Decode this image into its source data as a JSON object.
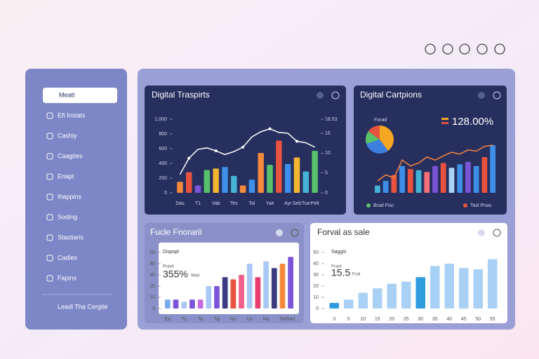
{
  "sidebar": {
    "items": [
      "Meatt",
      "Efi Instats",
      "Cashiy",
      "Caagties",
      "Enapt",
      "Ihappins",
      "Soding",
      "Stastiaris",
      "Cadies",
      "Fapins"
    ],
    "footer": "Leadl Tha Cergite"
  },
  "chart_data": [
    {
      "type": "bar",
      "title": "Digital Traspirts",
      "categories": [
        "Sau",
        null,
        "T1",
        null,
        "Vab",
        null,
        "Tes",
        null,
        "Tal",
        null,
        "Yae",
        null,
        "Ayr",
        "Seb",
        "Tue",
        "Pelt"
      ],
      "values": [
        150,
        280,
        100,
        310,
        330,
        350,
        230,
        100,
        180,
        540,
        380,
        710,
        390,
        480,
        290,
        570
      ],
      "colors": [
        "#f58a3c",
        "#e8533f",
        "#7a55d8",
        "#58c26a",
        "#f2b630",
        "#3d8fe8",
        "#45b3d6",
        "#f58a3c",
        "#3d8fe8",
        "#f58a3c",
        "#58c26a",
        "#e8533f",
        "#3d8fe8",
        "#f2b630",
        "#45b3d6",
        "#58c26a"
      ],
      "line_values": [
        250,
        470,
        590,
        610,
        570,
        520,
        560,
        620,
        760,
        830,
        870,
        820,
        810,
        700,
        680,
        620
      ],
      "line_color": "#ffffff",
      "ylim": [
        0,
        1000
      ],
      "yticks": [
        0,
        200,
        400,
        600,
        800,
        {
          "value": 1000,
          "label": "1,000"
        }
      ],
      "y2lim": [
        0,
        18.53
      ],
      "y2ticks": [
        0,
        5,
        10,
        15,
        18.53
      ]
    },
    {
      "type": "bar",
      "title": "Digital Cartpions",
      "kpi": "128.00%",
      "pie_label": "Forad",
      "pie": {
        "values": [
          40,
          30,
          15,
          15
        ],
        "colors": [
          "#f5a623",
          "#3d7fe0",
          "#58c26a",
          "#e8533f"
        ]
      },
      "values": [
        12,
        20,
        30,
        45,
        40,
        38,
        35,
        45,
        50,
        42,
        48,
        52,
        45,
        60,
        80
      ],
      "colors": [
        "#45b3d6",
        "#3d8fe8",
        "#e8533f",
        "#3d8fe8",
        "#e8533f",
        "#45b3d6",
        "#f5707a",
        "#7a55d8",
        "#e8533f",
        "#a9d6f5",
        "#3d8fe8",
        "#7a55d8",
        "#3d8fe8",
        "#e8533f",
        "#3d8fe8"
      ],
      "line_values": [
        20,
        30,
        25,
        55,
        45,
        50,
        60,
        55,
        62,
        68,
        65,
        72,
        70,
        78,
        80
      ],
      "line_color": "#f5843c",
      "ylim": [
        0,
        100
      ],
      "legend": [
        {
          "label": "Brad Fisc",
          "color": "#58c26a"
        },
        {
          "label": "Tasl Pnas",
          "color": "#e8533f"
        }
      ]
    },
    {
      "type": "bar",
      "title": "Fucle Fnoraril",
      "note_title": "Dispspl",
      "note_sub": "Prasit",
      "kpi": "355%",
      "kpi_unit": "Wad",
      "categories": [
        "Ea",
        null,
        "Tu",
        null,
        "Ta",
        null,
        "Tip",
        null,
        "Nu",
        null,
        "Uu",
        null,
        "Na",
        null,
        "Tar",
        "Bart"
      ],
      "values": [
        8,
        8,
        6,
        8,
        8,
        20,
        20,
        28,
        26,
        30,
        40,
        28,
        42,
        36,
        40,
        46
      ],
      "colors": [
        "#7aa8f0",
        "#7a55d8",
        "#a9c8f5",
        "#7a55d8",
        "#c86adf",
        "#a9c8f5",
        "#7a55d8",
        "#3a3a80",
        "#e8533f",
        "#f0608a",
        "#a9c8f5",
        "#e83f70",
        "#a9c8f5",
        "#3a3a80",
        "#f58a3c",
        "#7a55d8"
      ],
      "ylim": [
        0,
        50
      ],
      "yticks": [
        0,
        10,
        20,
        30,
        40,
        50
      ]
    },
    {
      "type": "bar",
      "title": "Forval as sale",
      "note_title": "Saggis",
      "note_sub": "Fcast",
      "kpi": "15.5",
      "kpi_unit": "Fcal",
      "categories": [
        "3",
        "5",
        "10",
        "15",
        "20",
        "25",
        "30",
        "35",
        "40",
        "45",
        "50",
        "55"
      ],
      "values": [
        5,
        8,
        14,
        18,
        22,
        24,
        28,
        38,
        40,
        36,
        35,
        44
      ],
      "colors": [
        "#2f9ce0",
        "#a9d0f5",
        "#a9d0f5",
        "#a9d0f5",
        "#a9d0f5",
        "#a9d0f5",
        "#2f9ce0",
        "#a9d0f5",
        "#a9d0f5",
        "#a9d0f5",
        "#a9d0f5",
        "#a9d0f5"
      ],
      "ylim": [
        0,
        50
      ],
      "yticks": [
        0,
        10,
        20,
        30,
        40,
        50
      ]
    }
  ]
}
